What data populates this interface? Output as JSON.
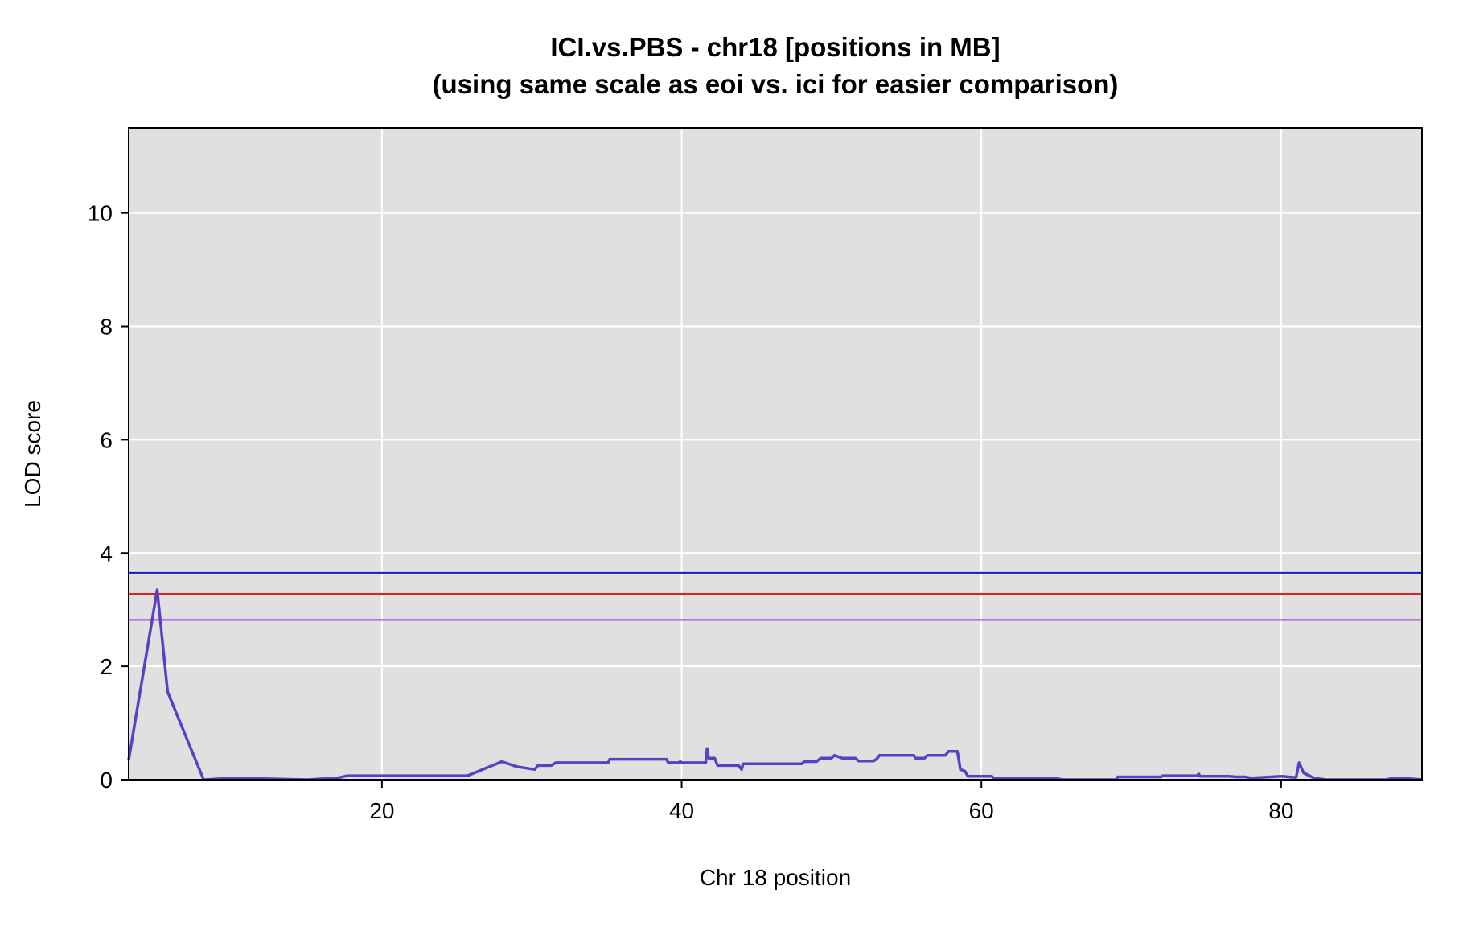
{
  "chart_data": {
    "type": "line",
    "title": "ICI.vs.PBS - chr18 [positions in MB]",
    "subtitle": "(using same scale as eoi vs. ici for easier comparison)",
    "xlabel": "Chr 18 position",
    "ylabel": "LOD score",
    "xlim": [
      3.1,
      89.4
    ],
    "ylim": [
      0,
      11.5
    ],
    "x_ticks": [
      20,
      40,
      60,
      80
    ],
    "y_ticks": [
      0,
      2,
      4,
      6,
      8,
      10
    ],
    "grid": true,
    "background": "#e0e0e0",
    "series": [
      {
        "color": "#5b3fc4",
        "points": [
          [
            3.1,
            0.35
          ],
          [
            5.0,
            3.35
          ],
          [
            5.7,
            1.55
          ],
          [
            8.1,
            0.0
          ],
          [
            10.0,
            0.03
          ],
          [
            15.0,
            0.0
          ],
          [
            17.0,
            0.03
          ],
          [
            17.7,
            0.07
          ],
          [
            25.7,
            0.07
          ],
          [
            28.0,
            0.32
          ],
          [
            29.0,
            0.23
          ],
          [
            30.2,
            0.18
          ],
          [
            30.4,
            0.25
          ],
          [
            31.3,
            0.25
          ],
          [
            31.6,
            0.3
          ],
          [
            35.1,
            0.3
          ],
          [
            35.2,
            0.36
          ],
          [
            39.0,
            0.36
          ],
          [
            39.1,
            0.3
          ],
          [
            39.8,
            0.3
          ],
          [
            39.9,
            0.32
          ],
          [
            40.0,
            0.3
          ],
          [
            41.6,
            0.3
          ],
          [
            41.7,
            0.55
          ],
          [
            41.8,
            0.38
          ],
          [
            42.2,
            0.38
          ],
          [
            42.4,
            0.25
          ],
          [
            43.8,
            0.25
          ],
          [
            44.0,
            0.18
          ],
          [
            44.1,
            0.28
          ],
          [
            48.0,
            0.28
          ],
          [
            48.2,
            0.32
          ],
          [
            49.0,
            0.32
          ],
          [
            49.3,
            0.38
          ],
          [
            50.0,
            0.38
          ],
          [
            50.2,
            0.43
          ],
          [
            50.7,
            0.38
          ],
          [
            51.6,
            0.38
          ],
          [
            51.8,
            0.33
          ],
          [
            52.8,
            0.33
          ],
          [
            53.0,
            0.36
          ],
          [
            53.2,
            0.43
          ],
          [
            55.5,
            0.43
          ],
          [
            55.6,
            0.38
          ],
          [
            56.2,
            0.38
          ],
          [
            56.4,
            0.43
          ],
          [
            57.6,
            0.43
          ],
          [
            57.8,
            0.5
          ],
          [
            58.4,
            0.5
          ],
          [
            58.6,
            0.18
          ],
          [
            58.9,
            0.15
          ],
          [
            59.1,
            0.06
          ],
          [
            60.7,
            0.06
          ],
          [
            60.8,
            0.03
          ],
          [
            63.0,
            0.03
          ],
          [
            63.1,
            0.02
          ],
          [
            65.0,
            0.02
          ],
          [
            65.5,
            0.0
          ],
          [
            69.0,
            0.0
          ],
          [
            69.1,
            0.05
          ],
          [
            72.0,
            0.05
          ],
          [
            72.1,
            0.07
          ],
          [
            74.4,
            0.07
          ],
          [
            74.5,
            0.1
          ],
          [
            74.6,
            0.06
          ],
          [
            76.5,
            0.06
          ],
          [
            77.0,
            0.05
          ],
          [
            77.6,
            0.05
          ],
          [
            78.0,
            0.03
          ],
          [
            80.0,
            0.06
          ],
          [
            81.0,
            0.04
          ],
          [
            81.2,
            0.3
          ],
          [
            81.5,
            0.12
          ],
          [
            82.2,
            0.03
          ],
          [
            83.0,
            0.0
          ],
          [
            87.0,
            0.0
          ],
          [
            87.5,
            0.03
          ],
          [
            88.5,
            0.02
          ],
          [
            89.4,
            0.0
          ]
        ]
      }
    ],
    "thresholds": [
      {
        "value": 3.65,
        "color": "#1a1acc"
      },
      {
        "value": 3.28,
        "color": "#e02020"
      },
      {
        "value": 2.82,
        "color": "#9b30e0"
      }
    ]
  }
}
